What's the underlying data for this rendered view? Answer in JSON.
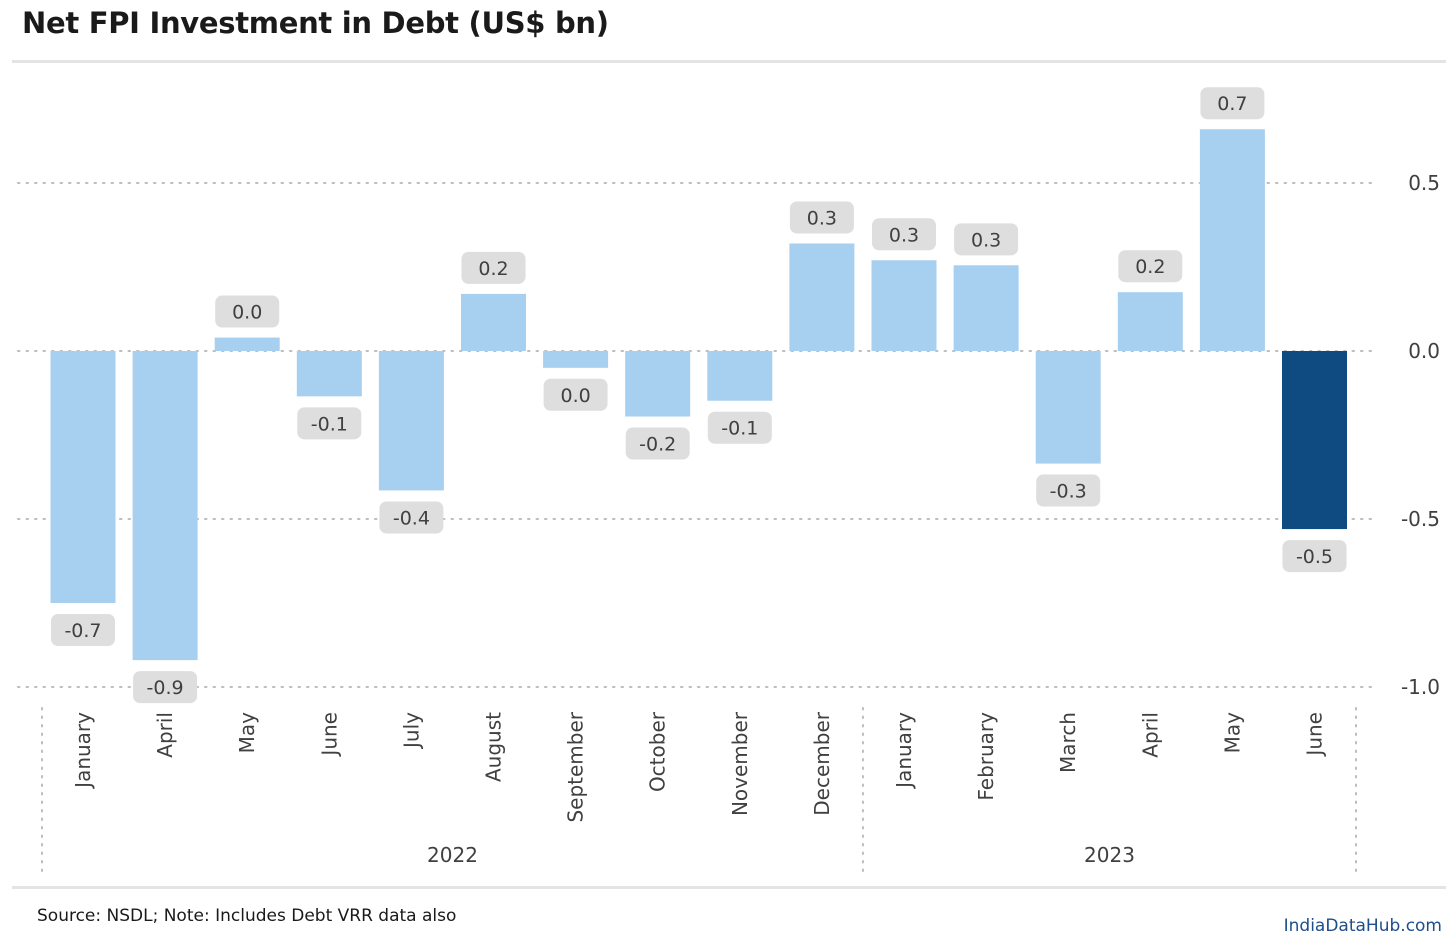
{
  "title": "Net FPI Investment in Debt (US$ bn)",
  "footer": {
    "source": "Source: NSDL; Note: Includes Debt VRR data also",
    "brand": "IndiaDataHub.com"
  },
  "colors": {
    "bar": "#a7cfef",
    "highlight_bar": "#0f4b80",
    "label_bg": "#dedede",
    "grid": "#bdbdbd",
    "axis_text": "#404040"
  },
  "chart_data": {
    "type": "bar",
    "title": "Net FPI Investment in Debt (US$ bn)",
    "categories": [
      "January",
      "April",
      "May",
      "June",
      "July",
      "August",
      "September",
      "October",
      "November",
      "December",
      "January",
      "February",
      "March",
      "April",
      "May",
      "June"
    ],
    "year_groups": [
      {
        "label": "2022",
        "count": 10
      },
      {
        "label": "2023",
        "count": 6
      }
    ],
    "values": [
      -0.75,
      -0.92,
      0.04,
      -0.135,
      -0.415,
      0.17,
      -0.05,
      -0.195,
      -0.148,
      0.32,
      0.27,
      0.255,
      -0.335,
      0.175,
      0.66,
      -0.53
    ],
    "data_labels": [
      "-0.7",
      "-0.9",
      "0.0",
      "-0.1",
      "-0.4",
      "0.2",
      "0.0",
      "-0.2",
      "-0.1",
      "0.3",
      "0.3",
      "0.3",
      "-0.3",
      "0.2",
      "0.7",
      "-0.5"
    ],
    "highlight_index": 15,
    "y_ticks": [
      0.5,
      0.0,
      -0.5,
      -1.0
    ],
    "y_tick_labels": [
      "0.5",
      "0.0",
      "-0.5",
      "-1.0"
    ],
    "ylim": [
      -1.0,
      0.7
    ],
    "grid": true,
    "y_axis_position": "right",
    "xlabel": "",
    "ylabel": ""
  }
}
